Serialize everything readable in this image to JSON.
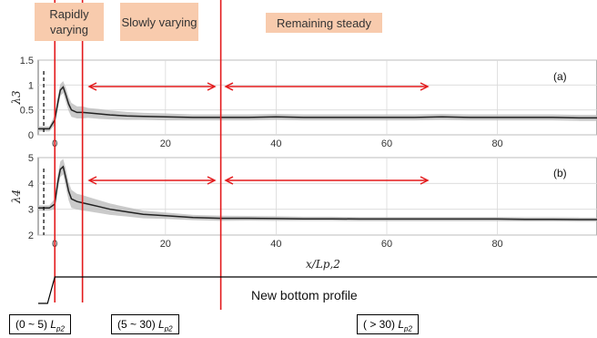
{
  "regions": {
    "rapid": "Rapidly varying",
    "slow": "Slowly varying",
    "steady": "Remaining steady"
  },
  "profile_caption": "New bottom profile",
  "range_boxes": [
    {
      "text": "(0 ~ 5) ",
      "unit": "L",
      "sub": "p2"
    },
    {
      "text": "(5 ~ 30) ",
      "unit": "L",
      "sub": "p2"
    },
    {
      "text": "( > 30) ",
      "unit": "L",
      "sub": "p2"
    }
  ],
  "colors": {
    "region_fill": "#f8cbad",
    "boundary_line": "#e31a1c",
    "mean_line": "#222222",
    "band": "#bdbdbd",
    "dashed_marker": "#000000"
  },
  "chart_data": [
    {
      "type": "line",
      "panel_tag": "(a)",
      "ylabel": "λ3",
      "xlabel": "",
      "xlim": [
        -3,
        98
      ],
      "ylim": [
        0,
        1.5
      ],
      "yticks": [
        0,
        0.5,
        1,
        1.5
      ],
      "xticks": [
        0,
        20,
        40,
        60,
        80
      ],
      "grid": true,
      "series": [
        {
          "x": [
            -3,
            -1,
            0,
            0.5,
            1,
            1.5,
            2,
            2.5,
            3,
            4,
            5,
            6,
            8,
            10,
            13,
            16,
            20,
            25,
            30,
            35,
            40,
            45,
            50,
            55,
            60,
            65,
            70,
            75,
            80,
            85,
            90,
            95,
            98
          ],
          "y": [
            0.12,
            0.12,
            0.3,
            0.62,
            0.9,
            0.96,
            0.8,
            0.62,
            0.5,
            0.45,
            0.45,
            0.44,
            0.42,
            0.4,
            0.38,
            0.37,
            0.36,
            0.35,
            0.35,
            0.35,
            0.36,
            0.35,
            0.35,
            0.35,
            0.35,
            0.35,
            0.36,
            0.35,
            0.35,
            0.35,
            0.35,
            0.34,
            0.34
          ],
          "band": [
            0.05,
            0.05,
            0.1,
            0.12,
            0.12,
            0.12,
            0.14,
            0.14,
            0.14,
            0.12,
            0.12,
            0.1,
            0.1,
            0.09,
            0.08,
            0.07,
            0.07,
            0.06,
            0.06,
            0.06,
            0.06,
            0.06,
            0.06,
            0.06,
            0.06,
            0.06,
            0.06,
            0.06,
            0.06,
            0.06,
            0.06,
            0.06,
            0.06
          ]
        }
      ]
    },
    {
      "type": "line",
      "panel_tag": "(b)",
      "ylabel": "λ4",
      "xlabel": "x/Lp,2",
      "xlim": [
        -3,
        98
      ],
      "ylim": [
        2,
        5
      ],
      "yticks": [
        2,
        3,
        4,
        5
      ],
      "xticks": [
        0,
        20,
        40,
        60,
        80
      ],
      "grid": true,
      "series": [
        {
          "x": [
            -3,
            -1,
            0,
            0.5,
            1,
            1.5,
            2,
            2.5,
            3,
            4,
            5,
            6,
            8,
            10,
            13,
            16,
            20,
            25,
            30,
            35,
            40,
            45,
            50,
            55,
            60,
            65,
            70,
            75,
            80,
            85,
            90,
            95,
            98
          ],
          "y": [
            3.05,
            3.05,
            3.2,
            4.0,
            4.55,
            4.65,
            4.2,
            3.7,
            3.4,
            3.3,
            3.25,
            3.2,
            3.1,
            3.0,
            2.9,
            2.8,
            2.75,
            2.68,
            2.65,
            2.65,
            2.64,
            2.63,
            2.63,
            2.62,
            2.62,
            2.62,
            2.62,
            2.62,
            2.62,
            2.61,
            2.61,
            2.6,
            2.6
          ],
          "band": [
            0.1,
            0.1,
            0.2,
            0.3,
            0.3,
            0.3,
            0.35,
            0.35,
            0.35,
            0.3,
            0.3,
            0.28,
            0.25,
            0.22,
            0.18,
            0.15,
            0.12,
            0.1,
            0.1,
            0.09,
            0.09,
            0.08,
            0.08,
            0.08,
            0.08,
            0.08,
            0.08,
            0.08,
            0.08,
            0.08,
            0.08,
            0.08,
            0.08
          ]
        }
      ]
    }
  ],
  "boundaries_x": [
    0,
    5,
    30
  ],
  "dashed_marker_x": -2
}
